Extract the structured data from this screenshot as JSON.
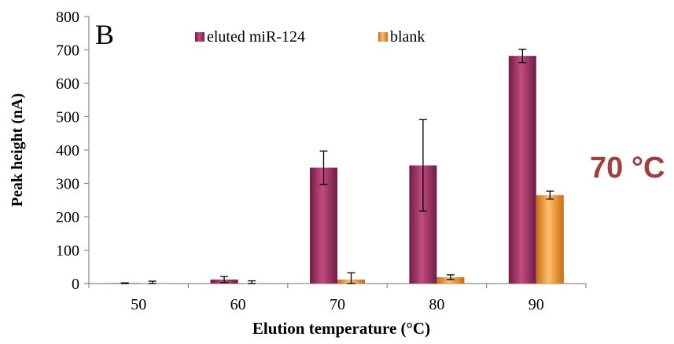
{
  "chart_data": {
    "type": "bar",
    "panel_label": "B",
    "categories": [
      "50",
      "60",
      "70",
      "80",
      "90"
    ],
    "series": [
      {
        "name": "eluted miR-124",
        "color": "#a83a6a",
        "values": [
          1,
          12,
          347,
          354,
          682
        ],
        "errors": [
          1,
          9,
          50,
          137,
          20
        ]
      },
      {
        "name": "blank",
        "color": "#f5a03a",
        "values": [
          1,
          1,
          12,
          19,
          265
        ],
        "errors": [
          6,
          7,
          20,
          7,
          12
        ]
      }
    ],
    "xlabel": "Elution temperature (°C)",
    "ylabel": "Peak height (nA)",
    "ylim": [
      0,
      800
    ],
    "yticks": [
      0,
      100,
      200,
      300,
      400,
      500,
      600,
      700,
      800
    ],
    "legend_position": "top-center",
    "grid": false,
    "annotation": {
      "text": "70 °C",
      "color": "#a0403c"
    }
  }
}
